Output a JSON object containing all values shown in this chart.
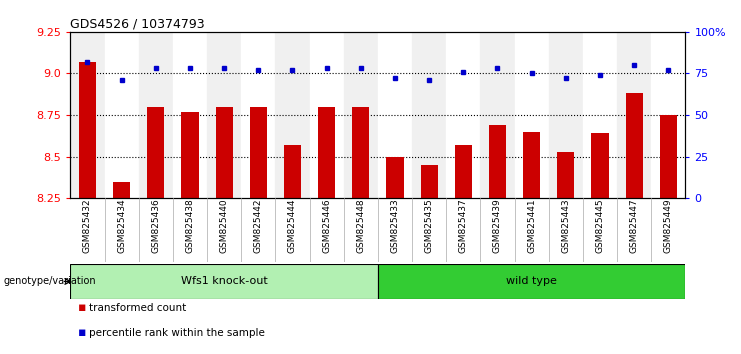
{
  "title": "GDS4526 / 10374793",
  "categories": [
    "GSM825432",
    "GSM825434",
    "GSM825436",
    "GSM825438",
    "GSM825440",
    "GSM825442",
    "GSM825444",
    "GSM825446",
    "GSM825448",
    "GSM825433",
    "GSM825435",
    "GSM825437",
    "GSM825439",
    "GSM825441",
    "GSM825443",
    "GSM825445",
    "GSM825447",
    "GSM825449"
  ],
  "bar_values": [
    9.07,
    8.35,
    8.8,
    8.77,
    8.8,
    8.8,
    8.57,
    8.8,
    8.8,
    8.5,
    8.45,
    8.57,
    8.69,
    8.65,
    8.53,
    8.64,
    8.88,
    8.75
  ],
  "percentile_values": [
    82,
    71,
    78,
    78,
    78,
    77,
    77,
    78,
    78,
    72,
    71,
    76,
    78,
    75,
    72,
    74,
    80,
    77
  ],
  "group1_label": "Wfs1 knock-out",
  "group2_label": "wild type",
  "group1_count": 9,
  "group2_count": 9,
  "ylim_left": [
    8.25,
    9.25
  ],
  "ylim_right": [
    0,
    100
  ],
  "yticks_left": [
    8.25,
    8.5,
    8.75,
    9.0,
    9.25
  ],
  "yticks_right": [
    0,
    25,
    50,
    75,
    100
  ],
  "bar_color": "#cc0000",
  "dot_color": "#0000cc",
  "group1_bg": "#b2f0b2",
  "group2_bg": "#33cc33",
  "col_bg_odd": "#f0f0f0",
  "col_bg_even": "#ffffff",
  "grid_color": "#000000",
  "legend_items": [
    "transformed count",
    "percentile rank within the sample"
  ],
  "genotype_label": "genotype/variation"
}
